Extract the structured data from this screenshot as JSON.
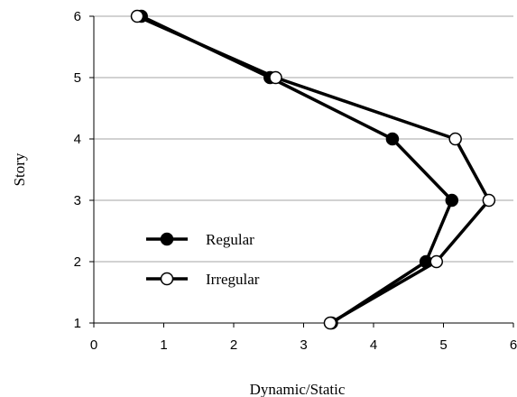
{
  "chart_data": {
    "type": "line",
    "title": "",
    "xlabel": "Dynamic/Static",
    "ylabel": "Story",
    "xlim": [
      0,
      6
    ],
    "ylim": [
      1,
      6
    ],
    "x_ticks": [
      0,
      1,
      2,
      3,
      4,
      5,
      6
    ],
    "y_ticks": [
      1,
      2,
      3,
      4,
      5,
      6
    ],
    "grid": "horizontal",
    "legend_position": "lower-left",
    "series": [
      {
        "name": "Regular",
        "marker": "filled-circle",
        "color": "#000000",
        "points": [
          {
            "x": 3.4,
            "y": 1
          },
          {
            "x": 4.75,
            "y": 2
          },
          {
            "x": 5.12,
            "y": 3
          },
          {
            "x": 4.27,
            "y": 4
          },
          {
            "x": 2.52,
            "y": 5
          },
          {
            "x": 0.68,
            "y": 6
          }
        ]
      },
      {
        "name": "Irregular",
        "marker": "open-circle",
        "color": "#000000",
        "points": [
          {
            "x": 3.38,
            "y": 1
          },
          {
            "x": 4.9,
            "y": 2
          },
          {
            "x": 5.65,
            "y": 3
          },
          {
            "x": 5.17,
            "y": 4
          },
          {
            "x": 2.6,
            "y": 5
          },
          {
            "x": 0.62,
            "y": 6
          }
        ]
      }
    ]
  }
}
